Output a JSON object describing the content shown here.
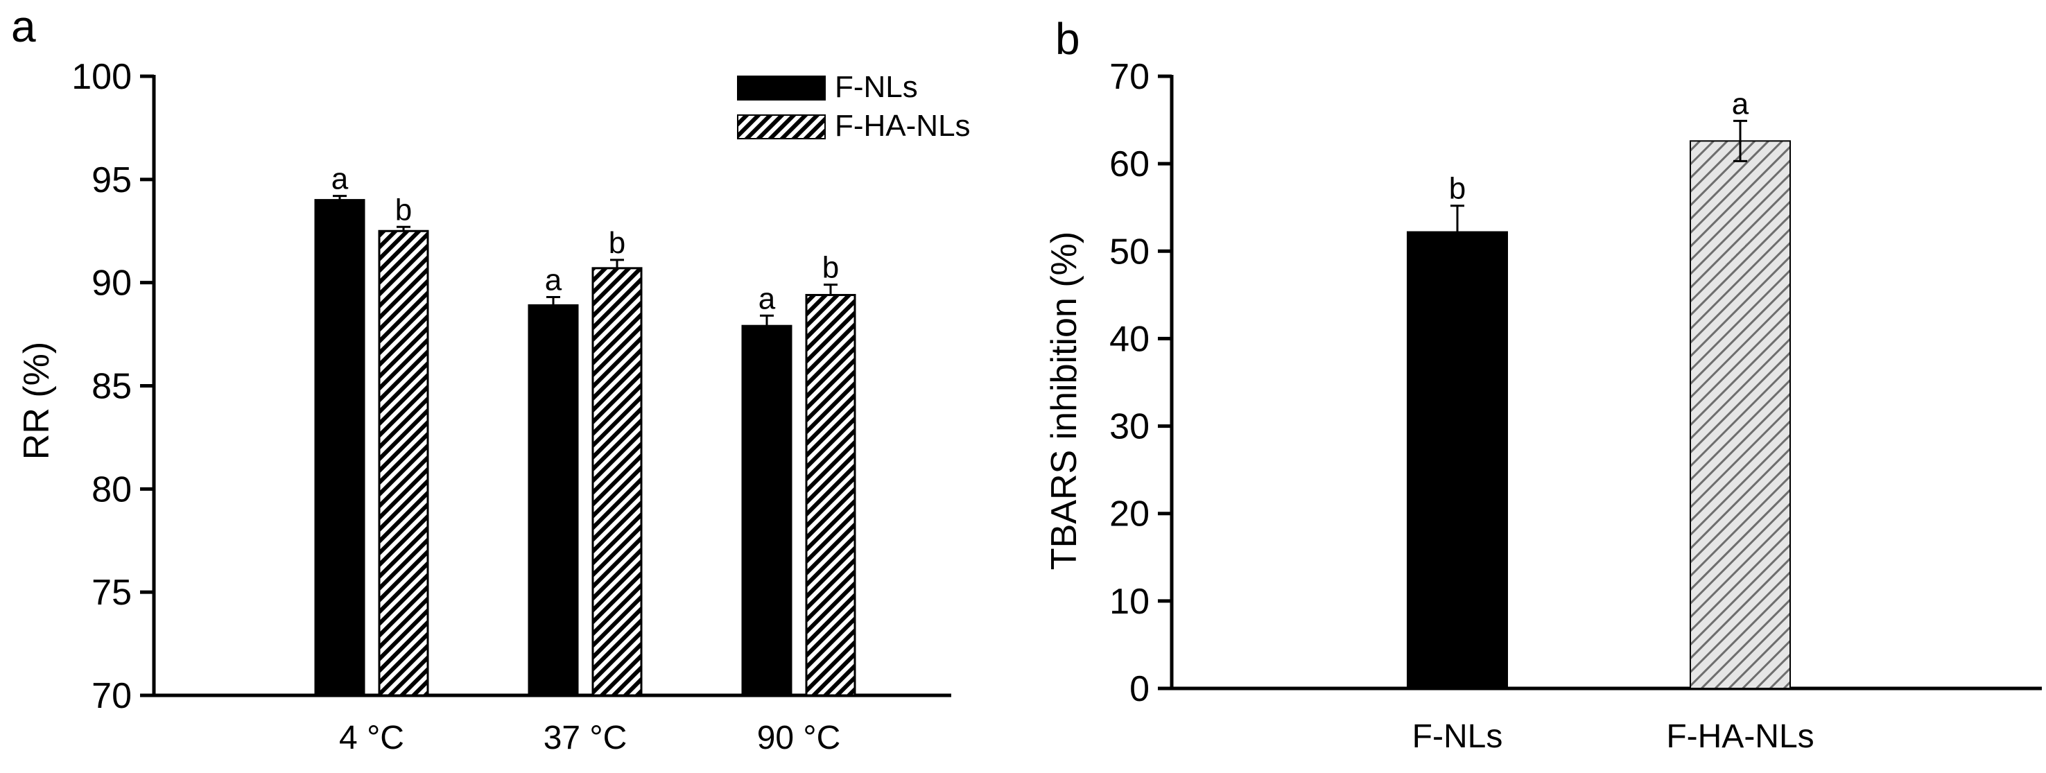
{
  "chart_data": [
    {
      "panel": "a",
      "type": "bar",
      "title": "",
      "xlabel": "",
      "ylabel": "RR (%)",
      "ylim": [
        70,
        100
      ],
      "yticks": [
        70,
        75,
        80,
        85,
        90,
        95,
        100
      ],
      "categories": [
        "4 °C",
        "37 °C",
        "90 °C"
      ],
      "legend": {
        "placement": "top-right"
      },
      "series": [
        {
          "name": "F-NLs",
          "fill": "solid",
          "color": "#000000",
          "values": [
            94.0,
            88.9,
            87.9
          ],
          "errors": [
            0.2,
            0.4,
            0.5
          ],
          "labels": [
            "a",
            "a",
            "a"
          ]
        },
        {
          "name": "F-HA-NLs",
          "fill": "hatched",
          "color": "#000000",
          "values": [
            92.5,
            90.7,
            89.4
          ],
          "errors": [
            0.2,
            0.4,
            0.5
          ],
          "labels": [
            "b",
            "b",
            "b"
          ]
        }
      ]
    },
    {
      "panel": "b",
      "type": "bar",
      "title": "",
      "xlabel": "",
      "ylabel": "TBARS inhibition (%)",
      "ylim": [
        0,
        70
      ],
      "yticks": [
        0,
        10,
        20,
        30,
        40,
        50,
        60,
        70
      ],
      "categories": [
        "F-NLs",
        "F-HA-NLs"
      ],
      "series": [
        {
          "fills": [
            "solid",
            "hatched-light"
          ],
          "colors": [
            "#000000",
            "#d9d9d9"
          ],
          "values": [
            52.2,
            62.6
          ],
          "errors": [
            3.0,
            2.3
          ],
          "labels": [
            "b",
            "a"
          ]
        }
      ]
    }
  ]
}
